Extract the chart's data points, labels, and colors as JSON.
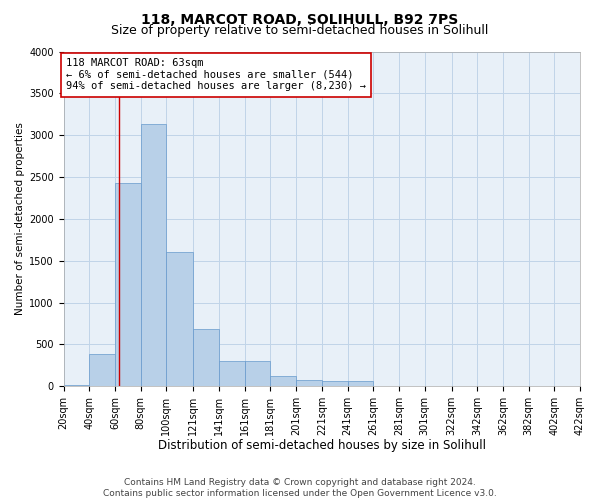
{
  "title1": "118, MARCOT ROAD, SOLIHULL, B92 7PS",
  "title2": "Size of property relative to semi-detached houses in Solihull",
  "xlabel": "Distribution of semi-detached houses by size in Solihull",
  "ylabel": "Number of semi-detached properties",
  "footnote": "Contains HM Land Registry data © Crown copyright and database right 2024.\nContains public sector information licensed under the Open Government Licence v3.0.",
  "property_size": 63,
  "annotation_line1": "118 MARCOT ROAD: 63sqm",
  "annotation_line2": "← 6% of semi-detached houses are smaller (544)",
  "annotation_line3": "94% of semi-detached houses are larger (8,230) →",
  "bar_color": "#b8d0e8",
  "bar_edge_color": "#6699cc",
  "vline_color": "#cc0000",
  "vline_x": 63,
  "bin_edges": [
    20,
    40,
    60,
    80,
    100,
    121,
    141,
    161,
    181,
    201,
    221,
    241,
    261,
    281,
    301,
    322,
    342,
    362,
    382,
    402,
    422
  ],
  "bar_heights": [
    20,
    390,
    2430,
    3130,
    1610,
    680,
    300,
    300,
    120,
    80,
    60,
    60,
    0,
    0,
    0,
    0,
    0,
    0,
    0,
    0
  ],
  "ylim": [
    0,
    4000
  ],
  "yticks": [
    0,
    500,
    1000,
    1500,
    2000,
    2500,
    3000,
    3500,
    4000
  ],
  "grid_color": "#c0d4e8",
  "bg_color": "#e8f0f8",
  "title1_fontsize": 10,
  "title2_fontsize": 9,
  "xlabel_fontsize": 8.5,
  "ylabel_fontsize": 7.5,
  "tick_fontsize": 7,
  "annotation_fontsize": 7.5,
  "footnote_fontsize": 6.5
}
